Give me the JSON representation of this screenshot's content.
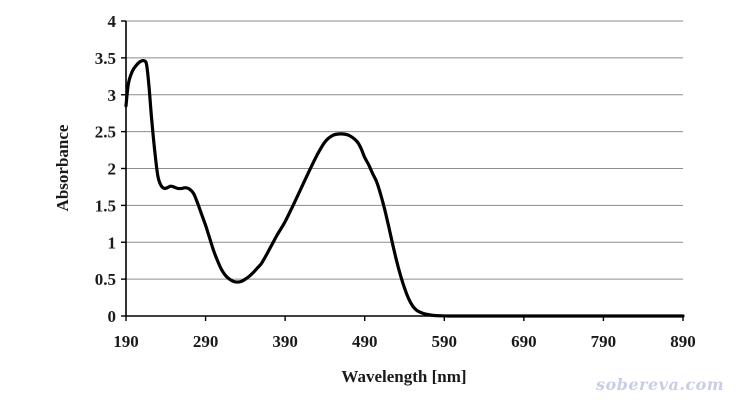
{
  "chart_data": {
    "type": "line",
    "title": "",
    "xlabel": "Wavelength [nm]",
    "ylabel": "Absorbance",
    "xlim": [
      190,
      890
    ],
    "ylim": [
      0,
      4
    ],
    "xticks": [
      190,
      290,
      390,
      490,
      590,
      690,
      790,
      890
    ],
    "xtick_labels": [
      "190",
      "290",
      "390",
      "490",
      "590",
      "690",
      "790",
      "890"
    ],
    "yticks": [
      0,
      0.5,
      1,
      1.5,
      2,
      2.5,
      3,
      3.5,
      4
    ],
    "ytick_labels": [
      "0",
      "0.5",
      "1",
      "1.5",
      "2",
      "2.5",
      "3",
      "3.5",
      "4"
    ],
    "grid": "horizontal",
    "legend": "none",
    "line_color": "#000000",
    "series": [
      {
        "x": [
          190,
          193,
          198,
          203,
          208,
          213,
          216,
          219,
          222,
          226,
          230,
          234,
          238,
          242,
          246,
          250,
          255,
          260,
          265,
          270,
          275,
          280,
          285,
          290,
          295,
          300,
          305,
          310,
          315,
          320,
          325,
          330,
          335,
          340,
          345,
          350,
          355,
          360,
          365,
          370,
          375,
          380,
          390,
          400,
          410,
          420,
          430,
          440,
          450,
          460,
          470,
          480,
          485,
          490,
          495,
          500,
          505,
          510,
          515,
          520,
          525,
          530,
          535,
          540,
          545,
          550,
          555,
          560,
          565,
          570,
          575,
          580,
          585,
          590,
          600,
          610,
          620,
          630,
          650,
          670,
          690,
          720,
          760,
          800,
          850,
          890
        ],
        "y": [
          2.85,
          3.15,
          3.32,
          3.4,
          3.45,
          3.46,
          3.4,
          3.1,
          2.7,
          2.25,
          1.9,
          1.77,
          1.73,
          1.74,
          1.76,
          1.75,
          1.73,
          1.73,
          1.74,
          1.72,
          1.66,
          1.53,
          1.38,
          1.23,
          1.06,
          0.89,
          0.75,
          0.63,
          0.55,
          0.5,
          0.47,
          0.46,
          0.47,
          0.5,
          0.54,
          0.59,
          0.65,
          0.71,
          0.8,
          0.9,
          1.0,
          1.1,
          1.28,
          1.5,
          1.73,
          1.96,
          2.18,
          2.36,
          2.45,
          2.47,
          2.45,
          2.37,
          2.28,
          2.15,
          2.05,
          1.93,
          1.82,
          1.65,
          1.45,
          1.22,
          0.98,
          0.75,
          0.55,
          0.38,
          0.24,
          0.14,
          0.08,
          0.05,
          0.03,
          0.02,
          0.01,
          0.005,
          0.003,
          0.001,
          0,
          0,
          0,
          0,
          0,
          0,
          0,
          0,
          0,
          0,
          0,
          0
        ]
      }
    ]
  },
  "watermark": "sobereva.com"
}
